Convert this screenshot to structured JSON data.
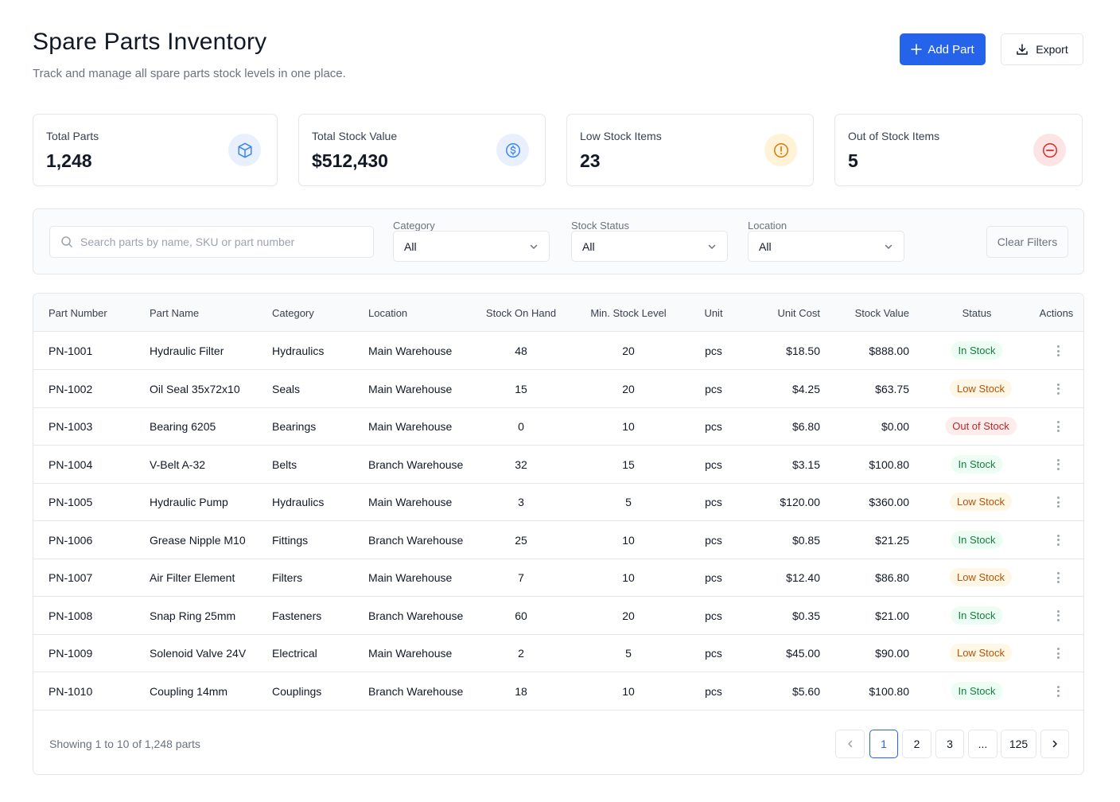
{
  "header": {
    "title": "Spare Parts Inventory",
    "subtitle": "Track and manage all spare parts stock levels in one place.",
    "add_label": "Add Part",
    "export_label": "Export"
  },
  "stats": [
    {
      "label": "Total Parts",
      "value": "1,248",
      "icon": "cube-icon",
      "color": "#3b82f6",
      "bg": "#e8f0fe"
    },
    {
      "label": "Total Stock Value",
      "value": "$512,430",
      "icon": "dollar-icon",
      "color": "#3b82f6",
      "bg": "#e8f0fe"
    },
    {
      "label": "Low Stock Items",
      "value": "23",
      "icon": "alert-icon",
      "color": "#d97706",
      "bg": "#fef3d7"
    },
    {
      "label": "Out of Stock Items",
      "value": "5",
      "icon": "minus-circle-icon",
      "color": "#dc2626",
      "bg": "#fde4e4"
    }
  ],
  "filters": {
    "search_placeholder": "Search parts by name, SKU or part number",
    "category_label": "Category",
    "category_value": "All",
    "status_label": "Stock Status",
    "status_value": "All",
    "location_label": "Location",
    "location_value": "All",
    "clear_label": "Clear Filters"
  },
  "table": {
    "headers": [
      "Part Number",
      "Part Name",
      "Category",
      "Location",
      "Stock On Hand",
      "Min. Stock Level",
      "Unit",
      "Unit Cost",
      "Stock Value",
      "Status",
      "Actions"
    ],
    "rows": [
      [
        "PN-1001",
        "Hydraulic Filter",
        "Hydraulics",
        "Main Warehouse",
        "48",
        "20",
        "pcs",
        "$18.50",
        "$888.00",
        "In Stock"
      ],
      [
        "PN-1002",
        "Oil Seal 35x72x10",
        "Seals",
        "Main Warehouse",
        "15",
        "20",
        "pcs",
        "$4.25",
        "$63.75",
        "Low Stock"
      ],
      [
        "PN-1003",
        "Bearing 6205",
        "Bearings",
        "Main Warehouse",
        "0",
        "10",
        "pcs",
        "$6.80",
        "$0.00",
        "Out of Stock"
      ],
      [
        "PN-1004",
        "V-Belt A-32",
        "Belts",
        "Branch Warehouse",
        "32",
        "15",
        "pcs",
        "$3.15",
        "$100.80",
        "In Stock"
      ],
      [
        "PN-1005",
        "Hydraulic Pump",
        "Hydraulics",
        "Main Warehouse",
        "3",
        "5",
        "pcs",
        "$120.00",
        "$360.00",
        "Low Stock"
      ],
      [
        "PN-1006",
        "Grease Nipple M10",
        "Fittings",
        "Branch Warehouse",
        "25",
        "10",
        "pcs",
        "$0.85",
        "$21.25",
        "In Stock"
      ],
      [
        "PN-1007",
        "Air Filter Element",
        "Filters",
        "Main Warehouse",
        "7",
        "10",
        "pcs",
        "$12.40",
        "$86.80",
        "Low Stock"
      ],
      [
        "PN-1008",
        "Snap Ring 25mm",
        "Fasteners",
        "Branch Warehouse",
        "60",
        "20",
        "pcs",
        "$0.35",
        "$21.00",
        "In Stock"
      ],
      [
        "PN-1009",
        "Solenoid Valve 24V",
        "Electrical",
        "Main Warehouse",
        "2",
        "5",
        "pcs",
        "$45.00",
        "$90.00",
        "Low Stock"
      ],
      [
        "PN-1010",
        "Coupling 14mm",
        "Couplings",
        "Branch Warehouse",
        "18",
        "10",
        "pcs",
        "$5.60",
        "$100.80",
        "In Stock"
      ]
    ]
  },
  "footer": {
    "summary": "Showing 1 to 10 of 1,248 parts",
    "pages": [
      "1",
      "2",
      "3",
      "...",
      "125"
    ],
    "current_page": "1"
  }
}
